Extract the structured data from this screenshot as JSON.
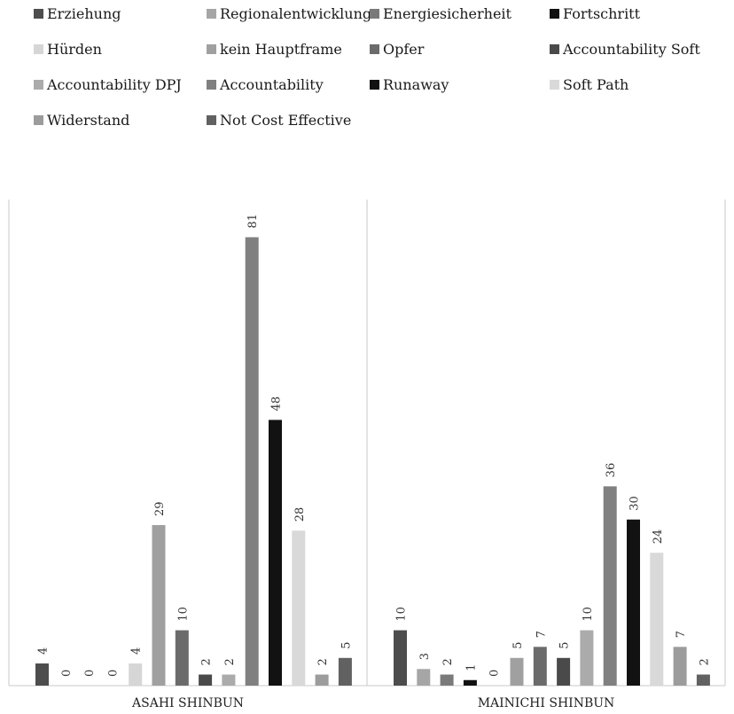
{
  "chart_data": {
    "type": "bar",
    "categories": [
      "ASAHI SHINBUN",
      "MAINICHI SHINBUN"
    ],
    "series": [
      {
        "name": "Erziehung",
        "color": "#4d4d4d",
        "values": [
          4,
          10
        ]
      },
      {
        "name": "Regionalentwicklung",
        "color": "#a6a6a6",
        "values": [
          0,
          3
        ]
      },
      {
        "name": "Energiesicherheit",
        "color": "#7a7a7a",
        "values": [
          0,
          2
        ]
      },
      {
        "name": "Fortschritt",
        "color": "#111111",
        "values": [
          0,
          1
        ]
      },
      {
        "name": "Hürden",
        "color": "#d6d6d6",
        "values": [
          4,
          0
        ]
      },
      {
        "name": "kein Hauptframe",
        "color": "#a0a0a0",
        "values": [
          29,
          5
        ]
      },
      {
        "name": "Opfer",
        "color": "#6b6b6b",
        "values": [
          10,
          7
        ]
      },
      {
        "name": "Accountability Soft",
        "color": "#4a4a4a",
        "values": [
          2,
          5
        ]
      },
      {
        "name": "Accountability DPJ",
        "color": "#ababab",
        "values": [
          2,
          10
        ]
      },
      {
        "name": "Accountability",
        "color": "#808080",
        "values": [
          81,
          36
        ]
      },
      {
        "name": "Runaway",
        "color": "#121212",
        "values": [
          48,
          30
        ]
      },
      {
        "name": "Soft Path",
        "color": "#d9d9d9",
        "values": [
          28,
          24
        ]
      },
      {
        "name": "Widerstand",
        "color": "#9c9c9c",
        "values": [
          2,
          7
        ]
      },
      {
        "name": "Not Cost Effective",
        "color": "#616161",
        "values": [
          5,
          2
        ]
      }
    ],
    "ylim": [
      0,
      87
    ],
    "legend_position": "top",
    "grid": false
  }
}
